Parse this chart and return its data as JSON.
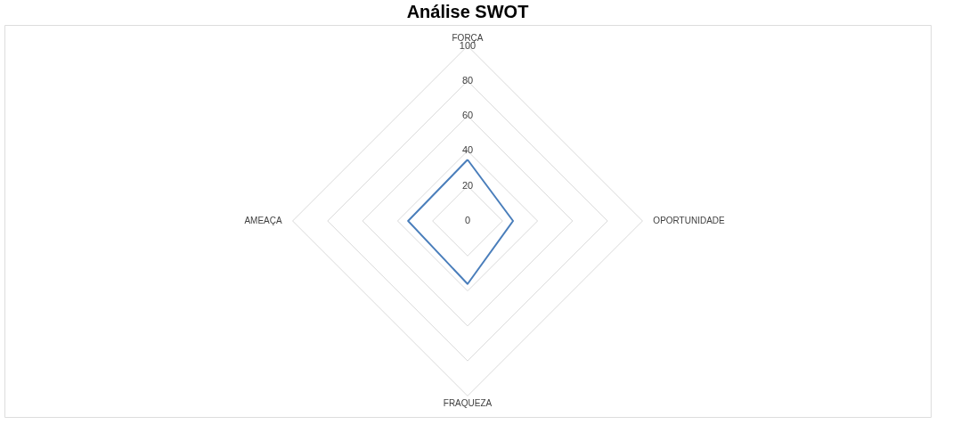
{
  "chart_data": {
    "type": "radar",
    "title": "Análise SWOT",
    "categories": [
      "FORÇA",
      "OPORTUNIDADE",
      "FRAQUEZA",
      "AMEAÇA"
    ],
    "series": [
      {
        "color": "#4a7ebb",
        "values": [
          35,
          26,
          36,
          34
        ]
      }
    ],
    "ylim": [
      0,
      100
    ],
    "yticks": [
      0,
      20,
      40,
      60,
      80,
      100
    ],
    "grid": true,
    "marker": "none"
  }
}
